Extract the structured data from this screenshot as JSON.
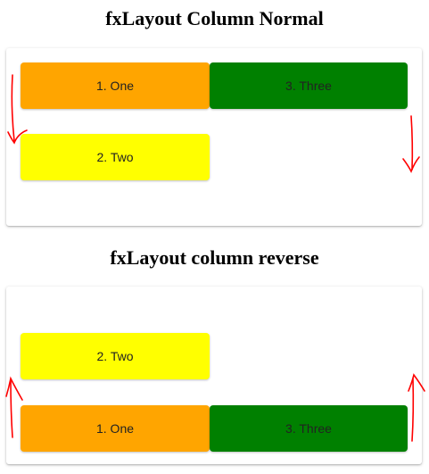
{
  "sections": [
    {
      "title": "fxLayout Column Normal",
      "items": [
        {
          "label": "1. One",
          "color": "#ffa500"
        },
        {
          "label": "2. Two",
          "color": "#ffff00"
        },
        {
          "label": "3. Three",
          "color": "#008000"
        }
      ]
    },
    {
      "title": "fxLayout column reverse",
      "items": [
        {
          "label": "1. One",
          "color": "#ffa500"
        },
        {
          "label": "2. Two",
          "color": "#ffff00"
        },
        {
          "label": "3. Three",
          "color": "#008000"
        }
      ]
    }
  ],
  "annotations": {
    "arrow_color": "#ff0000",
    "first_card_arrows": "down",
    "second_card_arrows": "up"
  }
}
